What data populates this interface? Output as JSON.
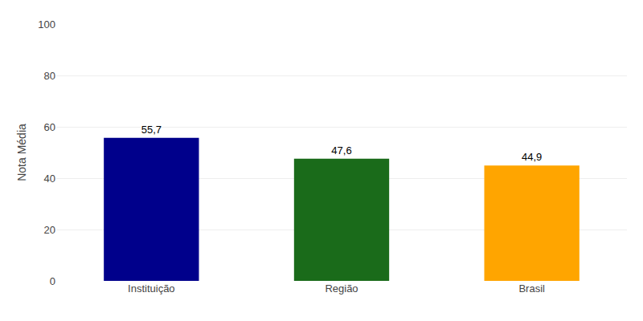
{
  "chart_data": {
    "type": "bar",
    "ylabel": "Nota Média",
    "categories": [
      "Instituição",
      "Região",
      "Brasil"
    ],
    "values": [
      55.7,
      47.6,
      44.9
    ],
    "value_labels": [
      "55,7",
      "47,6",
      "44,9"
    ],
    "data_labels": true,
    "colors": [
      "#00008B",
      "#1A6B1A",
      "#FFA500"
    ],
    "ylim": [
      0,
      100
    ],
    "yticks": [
      0,
      20,
      40,
      60,
      80,
      100
    ],
    "grid": true
  }
}
